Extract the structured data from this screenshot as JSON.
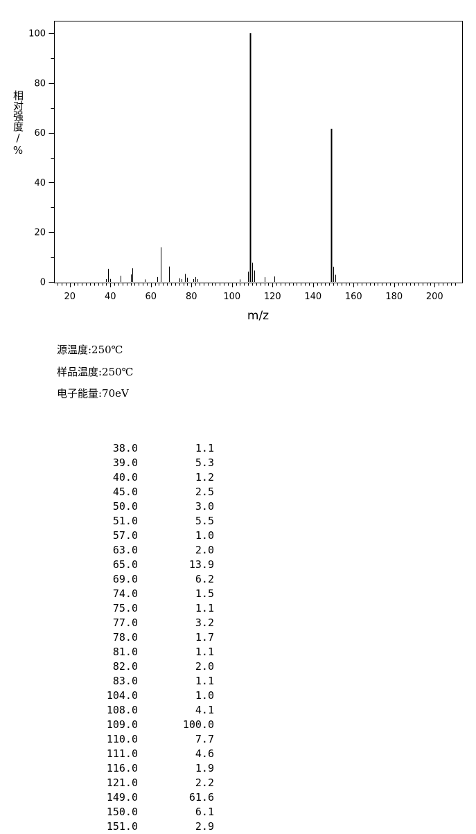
{
  "chart_data": {
    "type": "bar",
    "xlabel": "m/z",
    "ylabel": "相对强度/%",
    "xlim": [
      10,
      210
    ],
    "ylim": [
      0,
      100
    ],
    "x_ticks": [
      20,
      40,
      60,
      80,
      100,
      120,
      140,
      160,
      180,
      200
    ],
    "y_ticks": [
      0,
      20,
      40,
      60,
      80,
      100
    ],
    "peaks": [
      {
        "mz": 38.0,
        "intensity": 1.1
      },
      {
        "mz": 39.0,
        "intensity": 5.3
      },
      {
        "mz": 40.0,
        "intensity": 1.2
      },
      {
        "mz": 45.0,
        "intensity": 2.5
      },
      {
        "mz": 50.0,
        "intensity": 3.0
      },
      {
        "mz": 51.0,
        "intensity": 5.5
      },
      {
        "mz": 57.0,
        "intensity": 1.0
      },
      {
        "mz": 63.0,
        "intensity": 2.0
      },
      {
        "mz": 65.0,
        "intensity": 13.9
      },
      {
        "mz": 69.0,
        "intensity": 6.2
      },
      {
        "mz": 74.0,
        "intensity": 1.5
      },
      {
        "mz": 75.0,
        "intensity": 1.1
      },
      {
        "mz": 77.0,
        "intensity": 3.2
      },
      {
        "mz": 78.0,
        "intensity": 1.7
      },
      {
        "mz": 81.0,
        "intensity": 1.1
      },
      {
        "mz": 82.0,
        "intensity": 2.0
      },
      {
        "mz": 83.0,
        "intensity": 1.1
      },
      {
        "mz": 104.0,
        "intensity": 1.0
      },
      {
        "mz": 108.0,
        "intensity": 4.1
      },
      {
        "mz": 109.0,
        "intensity": 100.0
      },
      {
        "mz": 110.0,
        "intensity": 7.7
      },
      {
        "mz": 111.0,
        "intensity": 4.6
      },
      {
        "mz": 116.0,
        "intensity": 1.9
      },
      {
        "mz": 121.0,
        "intensity": 2.2
      },
      {
        "mz": 149.0,
        "intensity": 61.6
      },
      {
        "mz": 150.0,
        "intensity": 6.1
      },
      {
        "mz": 151.0,
        "intensity": 2.9
      }
    ]
  },
  "conditions": {
    "source_temp": "源温度:250℃",
    "sample_temp": "样品温度:250℃",
    "electron_energy": "电子能量:70eV"
  },
  "peak_table": [
    {
      "mz": "38.0",
      "intensity": "1.1"
    },
    {
      "mz": "39.0",
      "intensity": "5.3"
    },
    {
      "mz": "40.0",
      "intensity": "1.2"
    },
    {
      "mz": "45.0",
      "intensity": "2.5"
    },
    {
      "mz": "50.0",
      "intensity": "3.0"
    },
    {
      "mz": "51.0",
      "intensity": "5.5"
    },
    {
      "mz": "57.0",
      "intensity": "1.0"
    },
    {
      "mz": "63.0",
      "intensity": "2.0"
    },
    {
      "mz": "65.0",
      "intensity": "13.9"
    },
    {
      "mz": "69.0",
      "intensity": "6.2"
    },
    {
      "mz": "74.0",
      "intensity": "1.5"
    },
    {
      "mz": "75.0",
      "intensity": "1.1"
    },
    {
      "mz": "77.0",
      "intensity": "3.2"
    },
    {
      "mz": "78.0",
      "intensity": "1.7"
    },
    {
      "mz": "81.0",
      "intensity": "1.1"
    },
    {
      "mz": "82.0",
      "intensity": "2.0"
    },
    {
      "mz": "83.0",
      "intensity": "1.1"
    },
    {
      "mz": "104.0",
      "intensity": "1.0"
    },
    {
      "mz": "108.0",
      "intensity": "4.1"
    },
    {
      "mz": "109.0",
      "intensity": "100.0"
    },
    {
      "mz": "110.0",
      "intensity": "7.7"
    },
    {
      "mz": "111.0",
      "intensity": "4.6"
    },
    {
      "mz": "116.0",
      "intensity": "1.9"
    },
    {
      "mz": "121.0",
      "intensity": "2.2"
    },
    {
      "mz": "149.0",
      "intensity": "61.6"
    },
    {
      "mz": "150.0",
      "intensity": "6.1"
    },
    {
      "mz": "151.0",
      "intensity": "2.9"
    }
  ]
}
